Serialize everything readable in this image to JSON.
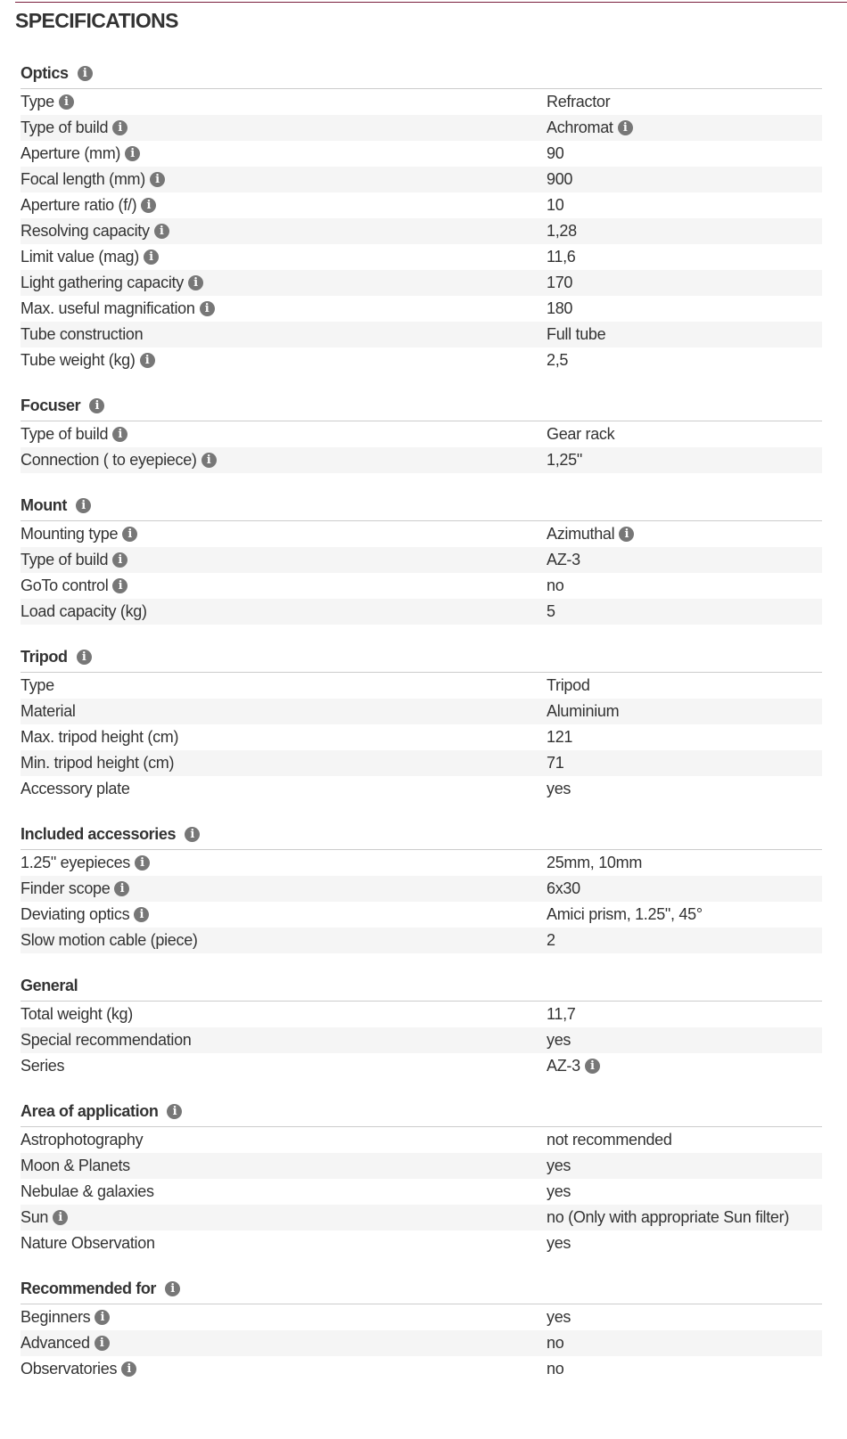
{
  "title": "SPECIFICATIONS",
  "colors": {
    "accent_line": "#7a1f3d",
    "row_alt": "#f5f5f5",
    "info_icon": "#777777"
  },
  "sections": [
    {
      "name": "Optics",
      "info": true,
      "rows": [
        {
          "label": "Type",
          "li": true,
          "value": "Refractor"
        },
        {
          "label": "Type of build",
          "li": true,
          "value": "Achromat",
          "vi": true
        },
        {
          "label": "Aperture (mm)",
          "li": true,
          "value": "90"
        },
        {
          "label": "Focal length (mm)",
          "li": true,
          "value": "900"
        },
        {
          "label": "Aperture ratio (f/)",
          "li": true,
          "value": "10"
        },
        {
          "label": "Resolving capacity",
          "li": true,
          "value": "1,28"
        },
        {
          "label": "Limit value (mag)",
          "li": true,
          "value": "11,6"
        },
        {
          "label": "Light gathering capacity",
          "li": true,
          "value": "170"
        },
        {
          "label": "Max. useful magnification",
          "li": true,
          "value": "180"
        },
        {
          "label": "Tube construction",
          "value": "Full tube"
        },
        {
          "label": "Tube weight (kg)",
          "li": true,
          "value": "2,5"
        }
      ]
    },
    {
      "name": "Focuser",
      "info": true,
      "rows": [
        {
          "label": "Type of build",
          "li": true,
          "value": "Gear rack"
        },
        {
          "label": "Connection ( to eyepiece)",
          "li": true,
          "value": "1,25\""
        }
      ]
    },
    {
      "name": "Mount",
      "info": true,
      "rows": [
        {
          "label": "Mounting type",
          "li": true,
          "value": "Azimuthal",
          "vi": true
        },
        {
          "label": "Type of build",
          "li": true,
          "value": "AZ-3"
        },
        {
          "label": "GoTo control",
          "li": true,
          "value": "no"
        },
        {
          "label": "Load capacity (kg)",
          "value": "5"
        }
      ]
    },
    {
      "name": "Tripod",
      "info": true,
      "rows": [
        {
          "label": "Type",
          "value": "Tripod"
        },
        {
          "label": "Material",
          "value": "Aluminium"
        },
        {
          "label": "Max. tripod height (cm)",
          "value": "121"
        },
        {
          "label": "Min. tripod height (cm)",
          "value": "71"
        },
        {
          "label": "Accessory plate",
          "value": "yes"
        }
      ]
    },
    {
      "name": "Included accessories",
      "info": true,
      "rows": [
        {
          "label": "1.25\" eyepieces",
          "li": true,
          "value": "25mm, 10mm"
        },
        {
          "label": "Finder scope",
          "li": true,
          "value": "6x30"
        },
        {
          "label": "Deviating optics",
          "li": true,
          "value": "Amici prism, 1.25\", 45°"
        },
        {
          "label": "Slow motion cable (piece)",
          "value": "2"
        }
      ]
    },
    {
      "name": "General",
      "info": false,
      "rows": [
        {
          "label": "Total weight (kg)",
          "value": "11,7"
        },
        {
          "label": "Special recommendation",
          "value": "yes"
        },
        {
          "label": "Series",
          "value": "AZ-3",
          "vi": true
        }
      ]
    },
    {
      "name": "Area of application",
      "info": true,
      "rows": [
        {
          "label": "Astrophotography",
          "value": "not recommended"
        },
        {
          "label": "Moon & Planets",
          "value": "yes"
        },
        {
          "label": "Nebulae & galaxies",
          "value": "yes"
        },
        {
          "label": "Sun",
          "li": true,
          "value": "no (Only with appropriate Sun filter)"
        },
        {
          "label": "Nature Observation",
          "value": "yes"
        }
      ]
    },
    {
      "name": "Recommended for",
      "info": true,
      "rows": [
        {
          "label": "Beginners",
          "li": true,
          "value": "yes"
        },
        {
          "label": "Advanced",
          "li": true,
          "value": "no"
        },
        {
          "label": "Observatories",
          "li": true,
          "value": "no"
        }
      ]
    }
  ]
}
